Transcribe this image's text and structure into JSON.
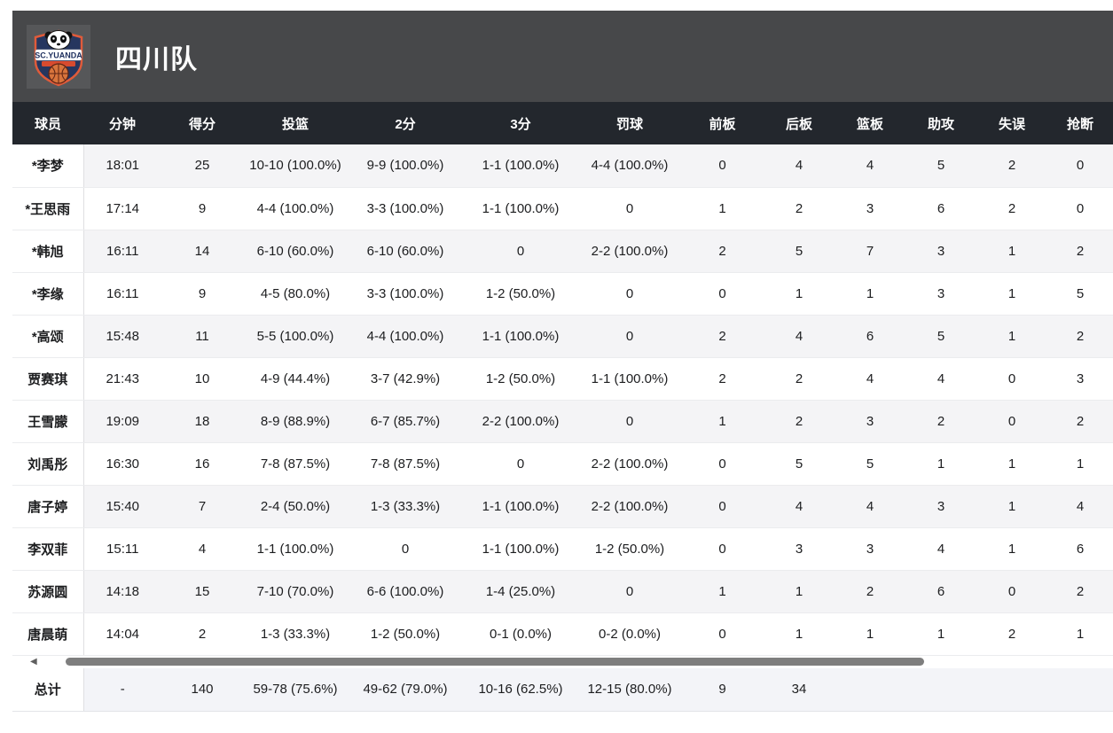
{
  "team_header": {
    "title": "四川队",
    "logo_name": "SC.YUANDA"
  },
  "table": {
    "columns": [
      "球员",
      "分钟",
      "得分",
      "投篮",
      "2分",
      "3分",
      "罚球",
      "前板",
      "后板",
      "篮板",
      "助攻",
      "失误",
      "抢断"
    ],
    "rows": [
      [
        "*李梦",
        "18:01",
        "25",
        "10-10 (100.0%)",
        "9-9 (100.0%)",
        "1-1 (100.0%)",
        "4-4 (100.0%)",
        "0",
        "4",
        "4",
        "5",
        "2",
        "0"
      ],
      [
        "*王思雨",
        "17:14",
        "9",
        "4-4 (100.0%)",
        "3-3 (100.0%)",
        "1-1 (100.0%)",
        "0",
        "1",
        "2",
        "3",
        "6",
        "2",
        "0"
      ],
      [
        "*韩旭",
        "16:11",
        "14",
        "6-10 (60.0%)",
        "6-10 (60.0%)",
        "0",
        "2-2 (100.0%)",
        "2",
        "5",
        "7",
        "3",
        "1",
        "2"
      ],
      [
        "*李缘",
        "16:11",
        "9",
        "4-5 (80.0%)",
        "3-3 (100.0%)",
        "1-2 (50.0%)",
        "0",
        "0",
        "1",
        "1",
        "3",
        "1",
        "5"
      ],
      [
        "*高颂",
        "15:48",
        "11",
        "5-5 (100.0%)",
        "4-4 (100.0%)",
        "1-1 (100.0%)",
        "0",
        "2",
        "4",
        "6",
        "5",
        "1",
        "2"
      ],
      [
        "贾赛琪",
        "21:43",
        "10",
        "4-9 (44.4%)",
        "3-7 (42.9%)",
        "1-2 (50.0%)",
        "1-1 (100.0%)",
        "2",
        "2",
        "4",
        "4",
        "0",
        "3"
      ],
      [
        "王雪朦",
        "19:09",
        "18",
        "8-9 (88.9%)",
        "6-7 (85.7%)",
        "2-2 (100.0%)",
        "0",
        "1",
        "2",
        "3",
        "2",
        "0",
        "2"
      ],
      [
        "刘禹彤",
        "16:30",
        "16",
        "7-8 (87.5%)",
        "7-8 (87.5%)",
        "0",
        "2-2 (100.0%)",
        "0",
        "5",
        "5",
        "1",
        "1",
        "1"
      ],
      [
        "唐子婷",
        "15:40",
        "7",
        "2-4 (50.0%)",
        "1-3 (33.3%)",
        "1-1 (100.0%)",
        "2-2 (100.0%)",
        "0",
        "4",
        "4",
        "3",
        "1",
        "4"
      ],
      [
        "李双菲",
        "15:11",
        "4",
        "1-1 (100.0%)",
        "0",
        "1-1 (100.0%)",
        "1-2 (50.0%)",
        "0",
        "3",
        "3",
        "4",
        "1",
        "6"
      ],
      [
        "苏源圆",
        "14:18",
        "15",
        "7-10 (70.0%)",
        "6-6 (100.0%)",
        "1-4 (25.0%)",
        "0",
        "1",
        "1",
        "2",
        "6",
        "0",
        "2"
      ],
      [
        "唐晨萌",
        "14:04",
        "2",
        "1-3 (33.3%)",
        "1-2 (50.0%)",
        "0-1 (0.0%)",
        "0-2 (0.0%)",
        "0",
        "1",
        "1",
        "1",
        "2",
        "1"
      ]
    ],
    "total": [
      "总计",
      "-",
      "140",
      "59-78 (75.6%)",
      "49-62 (79.0%)",
      "10-16 (62.5%)",
      "12-15 (80.0%)",
      "9",
      "34",
      "",
      "",
      "",
      ""
    ]
  },
  "scrollbar": {
    "left_arrow": "◀"
  },
  "colors": {
    "team_header_bg": "#47484a",
    "table_head_bg": "#23272d",
    "stripe_row_bg": "#f4f4f6",
    "total_row_bg": "#f3f4f8",
    "scroll_thumb": "#7e7e7e",
    "logo_shield": "#26365f",
    "logo_accent": "#e05b3a"
  }
}
